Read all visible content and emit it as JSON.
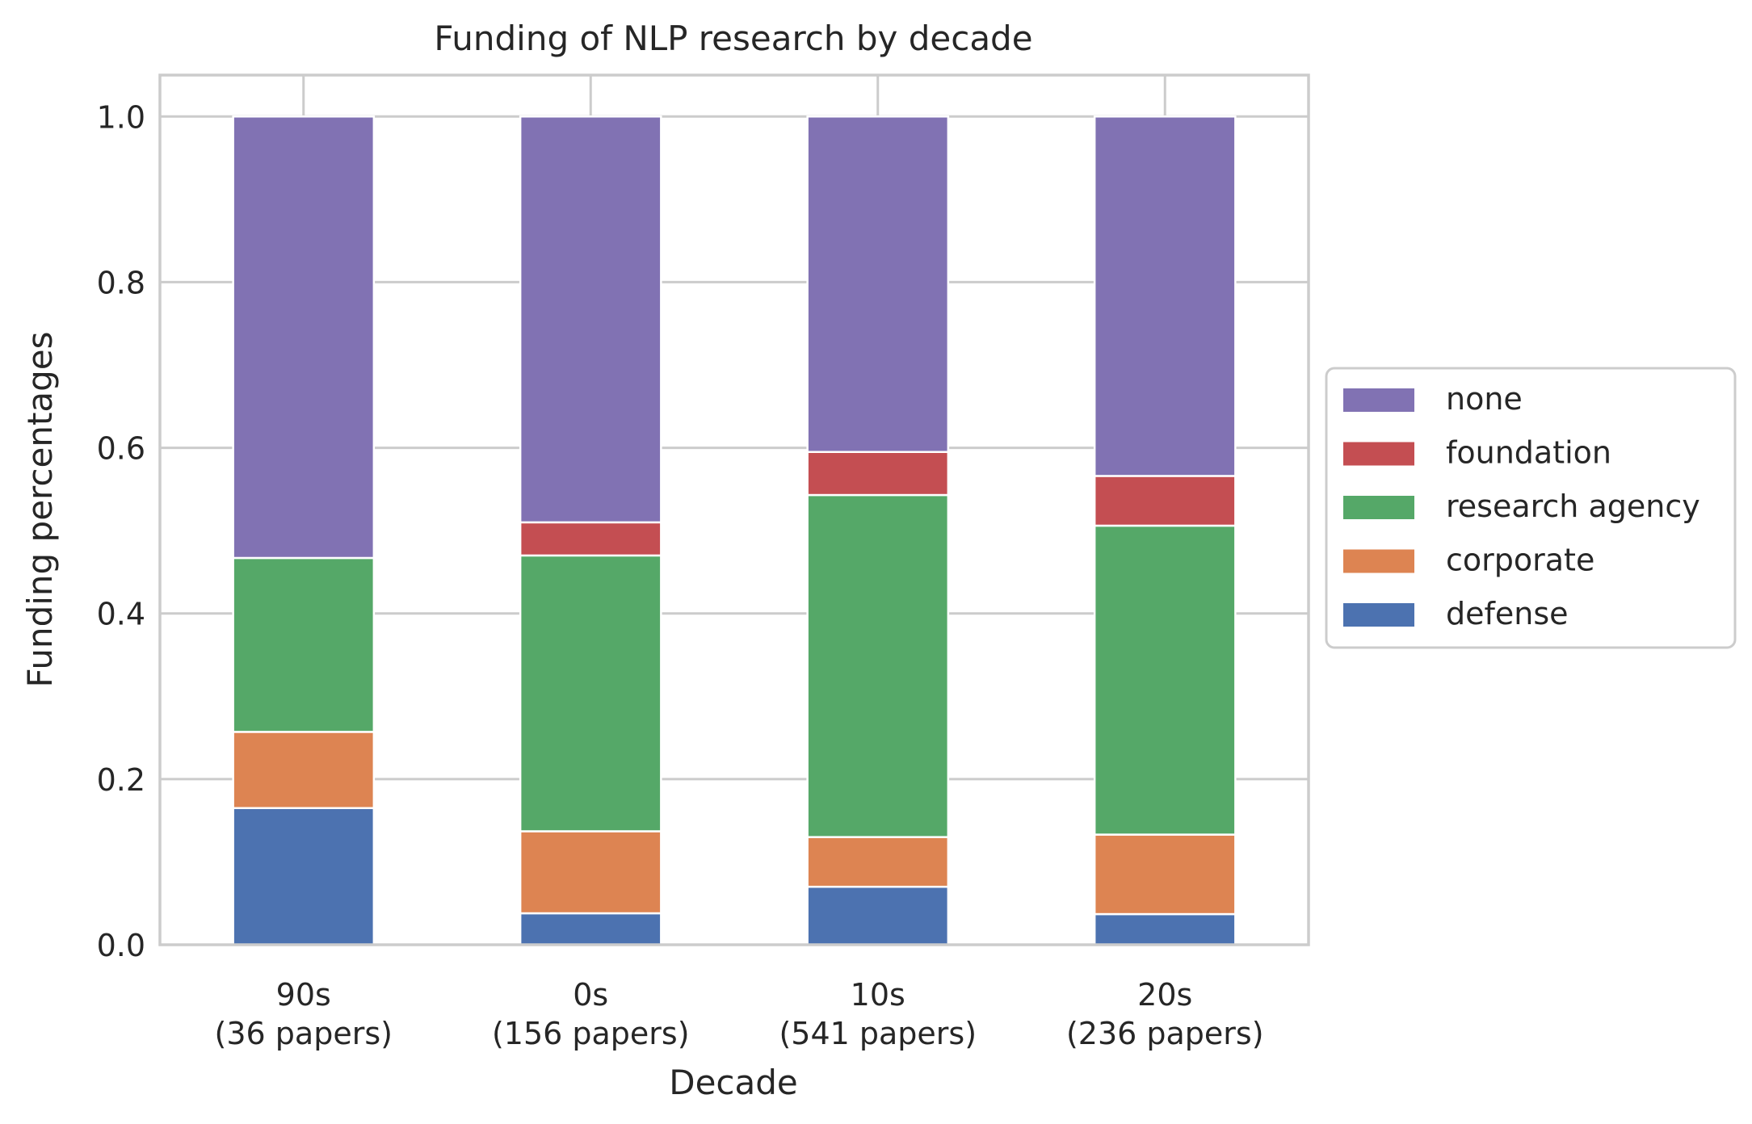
{
  "chart_data": {
    "type": "bar",
    "stacked": true,
    "title": "Funding of NLP research by decade",
    "xlabel": "Decade",
    "ylabel": "Funding percentages",
    "ylim": [
      0,
      1.05
    ],
    "yticks": [
      "0.0",
      "0.2",
      "0.4",
      "0.6",
      "0.8",
      "1.0"
    ],
    "ytick_values": [
      0,
      0.2,
      0.4,
      0.6,
      0.8,
      1.0
    ],
    "grid": true,
    "legend_position": "right, outside plot",
    "categories": [
      {
        "line1": "90s",
        "line2": "(36 papers)"
      },
      {
        "line1": "0s",
        "line2": "(156 papers)"
      },
      {
        "line1": "10s",
        "line2": "(541 papers)"
      },
      {
        "line1": "20s",
        "line2": "(236 papers)"
      }
    ],
    "series": [
      {
        "name": "defense",
        "color": "#4c72b0",
        "values": [
          0.165,
          0.038,
          0.07,
          0.037
        ]
      },
      {
        "name": "corporate",
        "color": "#dd8452",
        "values": [
          0.092,
          0.099,
          0.06,
          0.096
        ]
      },
      {
        "name": "research agency",
        "color": "#55a868",
        "values": [
          0.21,
          0.333,
          0.413,
          0.373
        ]
      },
      {
        "name": "foundation",
        "color": "#c44e52",
        "values": [
          0.0,
          0.04,
          0.052,
          0.06
        ]
      },
      {
        "name": "none",
        "color": "#8172b3",
        "values": [
          0.533,
          0.49,
          0.405,
          0.434
        ]
      }
    ],
    "legend_order": [
      "none",
      "foundation",
      "research agency",
      "corporate",
      "defense"
    ]
  }
}
